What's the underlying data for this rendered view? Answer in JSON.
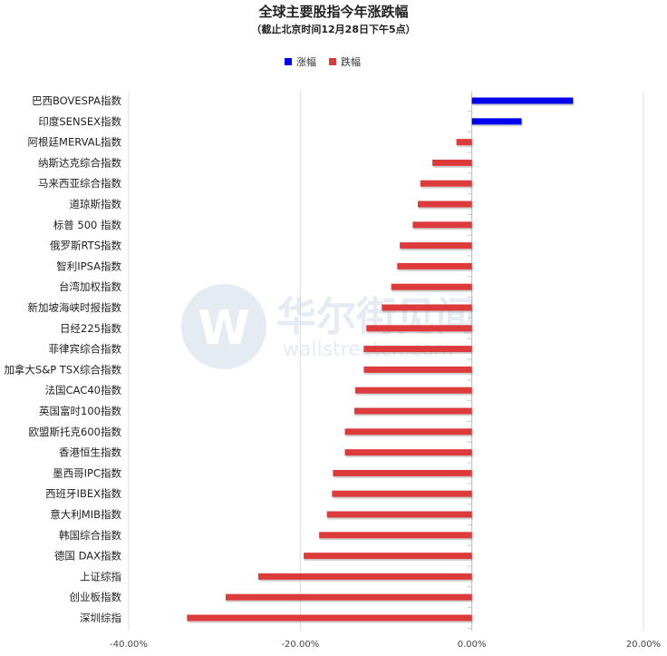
{
  "chart_data": {
    "type": "bar",
    "orientation": "horizontal",
    "title": "全球主要股指今年涨跌幅",
    "subtitle": "（截止北京时间12月28日下午5点）",
    "legend": [
      {
        "name": "涨幅",
        "color": "#0000ee"
      },
      {
        "name": "跌幅",
        "color": "#dd3b3b"
      }
    ],
    "legend_position": "top-center",
    "categories": [
      "巴西BOVESPA指数",
      "印度SENSEX指数",
      "阿根廷MERVAL指数",
      "纳斯达克综合指数",
      "马来西亚综合指数",
      "道琼斯指数",
      "标普 500 指数",
      "俄罗斯RTS指数",
      "智利IPSA指数",
      "台湾加权指数",
      "新加坡海峡时报指数",
      "日经225指数",
      "菲律宾综合指数",
      "加拿大S&P TSX综合指数",
      "法国CAC40指数",
      "英国富时100指数",
      "欧盟斯托克600指数",
      "香港恒生指数",
      "墨西哥IPC指数",
      "西班牙IBEX指数",
      "意大利MIB指数",
      "韩国综合指数",
      "德国 DAX指数",
      "上证综指",
      "创业板指数",
      "深圳综指"
    ],
    "values": [
      11.8,
      5.8,
      -1.8,
      -4.6,
      -6.0,
      -6.3,
      -6.9,
      -8.4,
      -8.7,
      -9.4,
      -10.5,
      -12.3,
      -12.6,
      -12.6,
      -13.6,
      -13.7,
      -14.8,
      -14.8,
      -16.2,
      -16.3,
      -16.9,
      -17.8,
      -19.6,
      -24.9,
      -28.7,
      -33.2
    ],
    "xlim": [
      -40,
      20
    ],
    "xticks": [
      "-40.00%",
      "-20.00%",
      "0.00%",
      "20.00%"
    ],
    "xtick_values": [
      -40,
      -20,
      0,
      20
    ],
    "grid": true
  },
  "watermark": {
    "logo_letter": "W",
    "name": "华尔街见闻",
    "domain": "wallstreetcn.com"
  }
}
